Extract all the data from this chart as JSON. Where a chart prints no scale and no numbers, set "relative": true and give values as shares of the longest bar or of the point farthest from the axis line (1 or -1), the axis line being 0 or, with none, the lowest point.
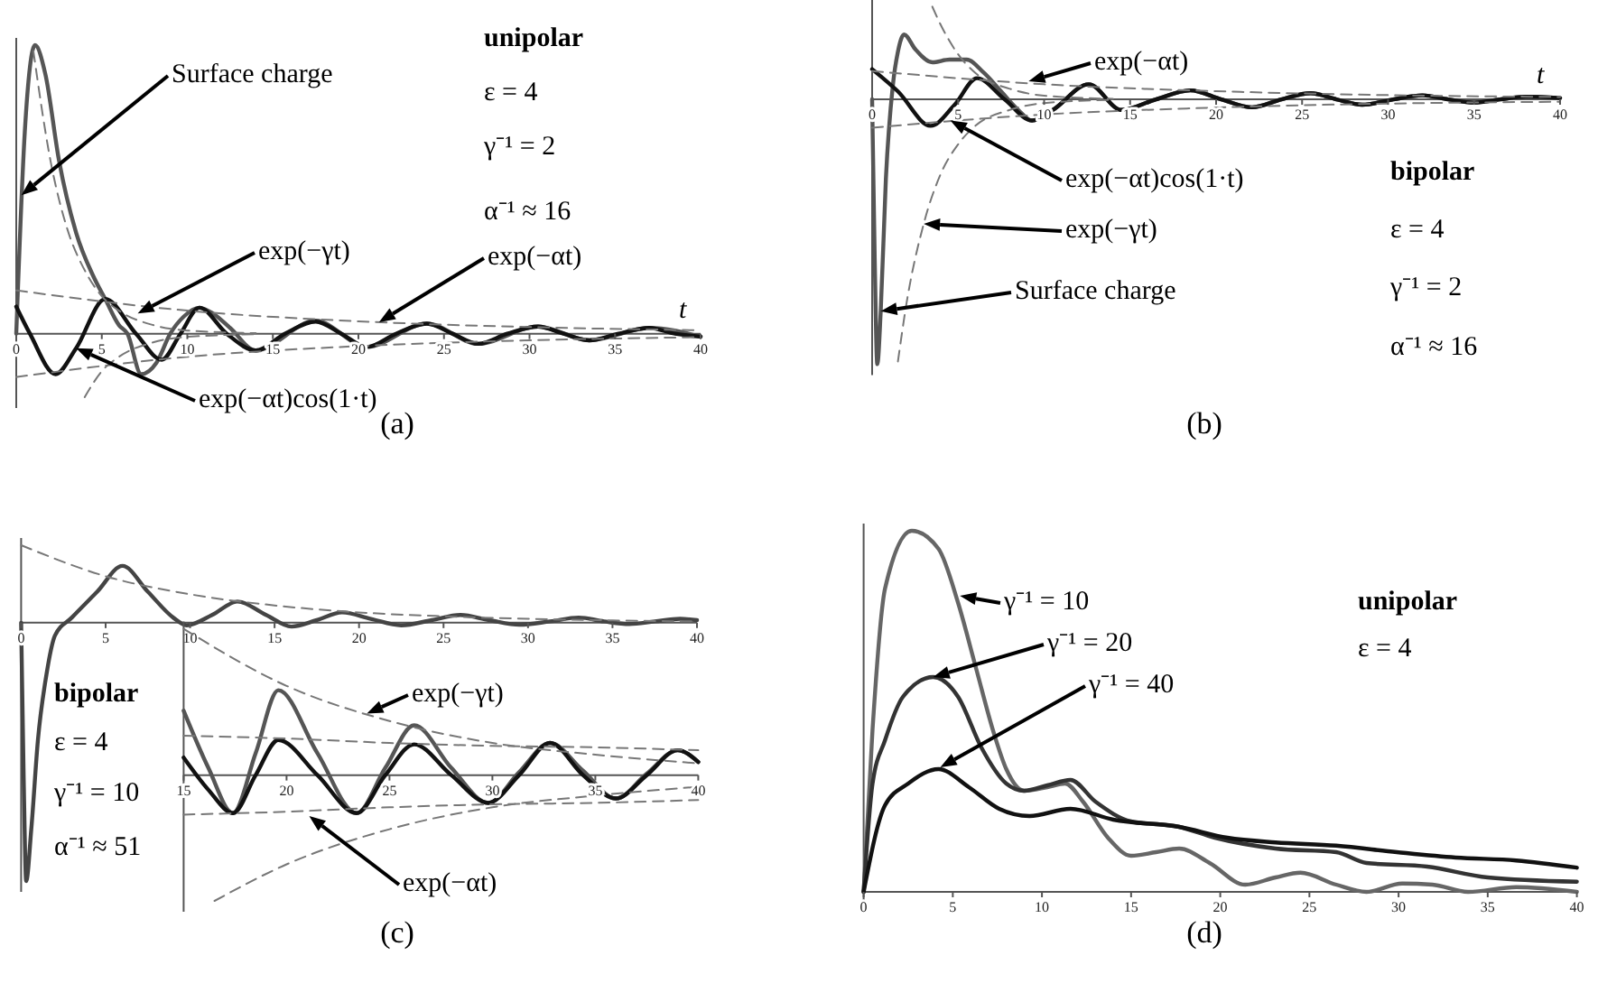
{
  "chart_data": [
    {
      "type": "line",
      "title": "(a)",
      "xlabel": "t",
      "relative": true,
      "xlim": [
        0,
        40
      ],
      "xticks": [
        0,
        5,
        10,
        15,
        20,
        25,
        30,
        35,
        40
      ],
      "annotations": [
        {
          "text": "Surface charge",
          "x": 0.3,
          "y": 0.48
        },
        {
          "text": "exp(−γt)",
          "x": 7.1,
          "y": 0.07
        },
        {
          "text": "exp(−αt)",
          "x": 21.2,
          "y": 0.04
        },
        "exp(−αt)cos(1·t)",
        "unipolar",
        "ε = 4",
        "γ⁻¹ = 2",
        "α⁻¹ ≈ 16"
      ],
      "series": [
        {
          "color": "#555555",
          "line_style": "solid",
          "x": [
            0,
            0.5,
            1.1,
            1.7,
            2.5,
            3.5,
            4.5,
            5.2,
            6,
            6.5,
            7.3,
            8.2,
            9,
            9.8,
            10.7,
            11.5,
            12.5,
            14,
            17.5,
            20.5,
            24,
            27,
            30.5,
            33.5,
            37,
            40
          ],
          "values": [
            0,
            0.7,
            1.0,
            0.9,
            0.6,
            0.35,
            0.2,
            0.12,
            0.03,
            0,
            -0.14,
            -0.1,
            0,
            0.06,
            0.09,
            0.07,
            0.02,
            -0.058,
            0.045,
            -0.046,
            0.035,
            -0.035,
            0.025,
            -0.023,
            0.02,
            -0.01
          ]
        },
        {
          "color": "#111111",
          "line_style": "solid",
          "x": [
            0,
            0.8,
            2.3,
            3.5,
            5.2,
            7,
            8.5,
            9.6,
            10.7,
            12.3,
            14,
            15.7,
            17.5,
            19,
            20.5,
            22.2,
            24,
            25.5,
            27,
            28.7,
            30.5,
            32,
            33.5,
            35.2,
            37,
            38.5,
            40
          ],
          "values": [
            0.094,
            0,
            -0.14,
            -0.05,
            0.12,
            0,
            -0.09,
            0,
            0.09,
            0,
            -0.058,
            0,
            0.042,
            0,
            -0.046,
            0,
            0.035,
            0,
            -0.035,
            0,
            0.025,
            0,
            -0.023,
            0,
            0.02,
            0,
            -0.01
          ]
        },
        {
          "color": "#777777",
          "line_style": "dashed",
          "x": [
            0,
            10,
            20,
            30,
            40
          ],
          "values": [
            0.15,
            0.08,
            0.043,
            0.023,
            0.012
          ]
        },
        {
          "color": "#777777",
          "line_style": "dashed",
          "x": [
            0,
            10,
            20,
            30,
            40
          ],
          "values": [
            -0.15,
            -0.08,
            -0.043,
            -0.023,
            -0.012
          ]
        },
        {
          "color": "#777777",
          "line_style": "dashed",
          "x": [
            1,
            2,
            3,
            4,
            5,
            6,
            8,
            10,
            14
          ],
          "values": [
            0.98,
            0.6,
            0.36,
            0.22,
            0.13,
            0.08,
            0.03,
            0.011,
            0.002
          ]
        },
        {
          "color": "#777777",
          "line_style": "dashed",
          "x": [
            4,
            5,
            6,
            8,
            10,
            14
          ],
          "values": [
            -0.22,
            -0.13,
            -0.08,
            -0.03,
            -0.011,
            -0.002
          ]
        }
      ]
    },
    {
      "type": "line",
      "title": "(b)",
      "xlabel": "t",
      "relative": true,
      "xlim": [
        0,
        40
      ],
      "xticks": [
        0,
        5,
        10,
        15,
        20,
        25,
        30,
        35,
        40
      ],
      "annotations": [
        {
          "text": "exp(−αt)",
          "x": 9.1,
          "y": 0.068
        },
        {
          "text": "exp(−αt)cos(1·t)",
          "x": 4.55,
          "y": -0.08
        },
        "exp(−γt)",
        {
          "text": "Surface charge",
          "x": 0.5,
          "y": -0.8
        },
        "bipolar",
        "ε = 4",
        "γ⁻¹ = 2",
        "α⁻¹ ≈ 16"
      ],
      "series": [
        {
          "color": "#555555",
          "line_style": "solid",
          "x": [
            0,
            0.15,
            0.3,
            0.5,
            0.8,
            1.2,
            1.5,
            1.86,
            2.5,
            3.5,
            4.5,
            5.5,
            6.5,
            7.5,
            8.5,
            9.3,
            10.5,
            12.6,
            14.5,
            16.5,
            18.5,
            20.3,
            22.1,
            23.8,
            25.5,
            27,
            28.5,
            30.3,
            32,
            33.5,
            35,
            36.5,
            38,
            40
          ],
          "values": [
            0,
            -0.6,
            -1,
            -0.8,
            -0.3,
            0.05,
            0.18,
            0.245,
            0.19,
            0.14,
            0.15,
            0.15,
            0.1,
            0.03,
            -0.04,
            -0.08,
            -0.04,
            0.057,
            -0.04,
            0,
            0.034,
            0,
            -0.03,
            0,
            0.023,
            0,
            -0.02,
            0,
            0.015,
            0,
            -0.012,
            0,
            0.01,
            0.005
          ]
        },
        {
          "color": "#111111",
          "line_style": "solid",
          "x": [
            0,
            1.5,
            3.4,
            4.8,
            6.1,
            7.7,
            9.3,
            10.5,
            12.6,
            14.5,
            16.5,
            18.5,
            20.3,
            22.1,
            23.8,
            25.5,
            27,
            28.5,
            30.3,
            32,
            33.5,
            35,
            36.5,
            38,
            40
          ],
          "values": [
            0.114,
            0.03,
            -0.1,
            -0.02,
            0.08,
            0,
            -0.08,
            -0.04,
            0.057,
            -0.04,
            0,
            0.034,
            0,
            -0.03,
            0,
            0.023,
            0,
            -0.02,
            0,
            0.015,
            0,
            -0.012,
            0,
            0.01,
            0.005
          ]
        },
        {
          "color": "#777777",
          "line_style": "dashed",
          "x": [
            0,
            10,
            20,
            30,
            40
          ],
          "values": [
            0.107,
            0.057,
            0.031,
            0.016,
            0.009
          ]
        },
        {
          "color": "#777777",
          "line_style": "dashed",
          "x": [
            0,
            10,
            20,
            30,
            40
          ],
          "values": [
            -0.107,
            -0.057,
            -0.031,
            -0.016,
            -0.009
          ]
        },
        {
          "color": "#777777",
          "line_style": "dashed",
          "x": [
            1.5,
            2,
            3,
            4,
            5,
            6,
            8,
            10,
            14
          ],
          "values": [
            -0.99,
            -0.77,
            -0.47,
            -0.28,
            -0.17,
            -0.1,
            -0.04,
            -0.014,
            -0.002
          ]
        },
        {
          "color": "#777777",
          "line_style": "dashed",
          "x": [
            3.5,
            4,
            5,
            6,
            8,
            10,
            14
          ],
          "values": [
            0.35,
            0.28,
            0.17,
            0.1,
            0.04,
            0.014,
            0.002
          ]
        }
      ]
    },
    {
      "type": "line",
      "title": "(c)",
      "relative": true,
      "xlim": [
        0,
        40
      ],
      "xticks": [
        0,
        5,
        10,
        15,
        20,
        25,
        30,
        35,
        40
      ],
      "annotations": [
        "bipolar",
        "ε = 4",
        "γ⁻¹ = 10",
        "α⁻¹ ≈ 51"
      ],
      "series": [
        {
          "color": "#444444",
          "line_style": "solid",
          "x": [
            0,
            0.15,
            0.3,
            0.6,
            1,
            1.5,
            2,
            3,
            4.5,
            6,
            7.5,
            9,
            9.8,
            11.3,
            12.8,
            14.5,
            16,
            17.5,
            19,
            20.7,
            22.5,
            24.3,
            26,
            27.7,
            29.5,
            31.3,
            33,
            34.5,
            36,
            37.5,
            39,
            40
          ],
          "values": [
            0,
            -0.6,
            -1,
            -0.8,
            -0.45,
            -0.2,
            -0.05,
            0.02,
            0.12,
            0.22,
            0.12,
            0.02,
            -0.01,
            0.03,
            0.082,
            0.03,
            -0.015,
            0.01,
            0.04,
            0.015,
            -0.01,
            0.01,
            0.03,
            0.01,
            -0.008,
            0.005,
            0.02,
            0.005,
            -0.005,
            0.005,
            0.015,
            0.01
          ]
        },
        {
          "color": "#777777",
          "line_style": "dashed",
          "x": [
            0,
            5,
            10,
            15,
            20,
            25,
            30,
            35,
            40
          ],
          "values": [
            0.3,
            0.18,
            0.11,
            0.067,
            0.04,
            0.025,
            0.015,
            0.009,
            0.005
          ]
        }
      ]
    },
    {
      "type": "line",
      "relative": true,
      "xlim": [
        15,
        40
      ],
      "xticks": [
        15,
        20,
        25,
        30,
        35,
        40
      ],
      "annotations": [
        {
          "text": "exp(−γt)",
          "x": 23.9,
          "y": 0.42
        },
        {
          "text": "exp(−αt)",
          "x": 21.1,
          "y": -0.28
        }
      ],
      "series": [
        {
          "color": "#555555",
          "line_style": "solid",
          "x": [
            15,
            16.2,
            17.4,
            18.5,
            19.6,
            21.5,
            23.4,
            24.8,
            26.2,
            28,
            29.8,
            31.3,
            32.8,
            34.4,
            36,
            37.5,
            39,
            40
          ],
          "values": [
            0.44,
            0.05,
            -0.26,
            0.15,
            0.58,
            0.15,
            -0.26,
            0.05,
            0.34,
            0.05,
            -0.19,
            0.02,
            0.22,
            0.03,
            -0.16,
            0.01,
            0.17,
            0.09
          ]
        },
        {
          "color": "#111111",
          "line_style": "solid",
          "x": [
            15,
            16.2,
            17.4,
            18.5,
            19.6,
            21.5,
            23.4,
            24.8,
            26.2,
            28,
            29.8,
            31.3,
            32.8,
            34.4,
            36,
            37.5,
            39,
            40
          ],
          "values": [
            0.12,
            -0.1,
            -0.26,
            0,
            0.24,
            0,
            -0.26,
            0,
            0.21,
            0,
            -0.19,
            0,
            0.22,
            0,
            -0.16,
            0,
            0.17,
            0.09
          ]
        },
        {
          "color": "#777777",
          "line_style": "dashed",
          "x": [
            15,
            20,
            25,
            30,
            35,
            40
          ],
          "values": [
            0.27,
            0.25,
            0.22,
            0.2,
            0.19,
            0.17
          ]
        },
        {
          "color": "#777777",
          "line_style": "dashed",
          "x": [
            15,
            20,
            25,
            30,
            35,
            40
          ],
          "values": [
            -0.27,
            -0.25,
            -0.22,
            -0.2,
            -0.19,
            -0.17
          ]
        },
        {
          "color": "#777777",
          "line_style": "dashed",
          "x": [
            15,
            20,
            25,
            30,
            35,
            40
          ],
          "values": [
            1,
            0.61,
            0.37,
            0.22,
            0.14,
            0.08
          ]
        },
        {
          "color": "#777777",
          "line_style": "dashed",
          "x": [
            16.5,
            20,
            25,
            30,
            35,
            40
          ],
          "values": [
            -0.86,
            -0.61,
            -0.37,
            -0.22,
            -0.14,
            -0.08
          ]
        }
      ]
    },
    {
      "type": "line",
      "title": "(d)",
      "relative": true,
      "xlim": [
        0,
        40
      ],
      "xticks": [
        0,
        5,
        10,
        15,
        20,
        25,
        30,
        35,
        40
      ],
      "annotations": [
        {
          "text": "γ⁻¹ = 10",
          "x": 5.4,
          "y": 0.82
        },
        {
          "text": "γ⁻¹ = 20",
          "x": 3.9,
          "y": 0.595
        },
        {
          "text": "γ⁻¹ = 40",
          "x": 4.3,
          "y": 0.345
        },
        "unipolar",
        "ε = 4"
      ],
      "series": [
        {
          "color": "#666666",
          "line_style": "solid",
          "x": [
            0,
            0.5,
            1.2,
            2.7,
            4.2,
            5.3,
            6.3,
            7.3,
            8,
            9,
            10.3,
            11.3,
            12.3,
            13.7,
            15,
            16.4,
            17.7,
            19.4,
            21.4,
            23.1,
            24.5,
            26.5,
            28.2,
            30.2,
            31.9,
            33.9,
            36.6,
            40
          ],
          "values": [
            0,
            0.45,
            0.84,
            1.0,
            0.95,
            0.8,
            0.62,
            0.44,
            0.34,
            0.28,
            0.29,
            0.3,
            0.25,
            0.15,
            0.1,
            0.11,
            0.12,
            0.08,
            0.02,
            0.04,
            0.053,
            0.02,
            0,
            0.023,
            0.02,
            0,
            0.013,
            0
          ]
        },
        {
          "color": "#333333",
          "line_style": "solid",
          "x": [
            0,
            0.5,
            1.2,
            2.2,
            3.9,
            5.3,
            6.6,
            8,
            9,
            10.3,
            11.6,
            13,
            15,
            17.7,
            19.7,
            23.1,
            26.5,
            28.2,
            31.6,
            35,
            40
          ],
          "values": [
            0,
            0.3,
            0.42,
            0.54,
            0.595,
            0.54,
            0.4,
            0.3,
            0.28,
            0.295,
            0.31,
            0.25,
            0.195,
            0.18,
            0.15,
            0.12,
            0.11,
            0.08,
            0.07,
            0.04,
            0.028
          ]
        },
        {
          "color": "#111111",
          "line_style": "solid",
          "x": [
            0,
            1.2,
            2.5,
            4.2,
            5.9,
            7.6,
            9.3,
            11.6,
            14,
            17.7,
            20.4,
            23.1,
            26.5,
            29.9,
            33.2,
            36.6,
            40
          ],
          "values": [
            0,
            0.24,
            0.3,
            0.34,
            0.29,
            0.23,
            0.21,
            0.23,
            0.2,
            0.18,
            0.15,
            0.137,
            0.128,
            0.11,
            0.095,
            0.087,
            0.067
          ]
        }
      ]
    }
  ]
}
